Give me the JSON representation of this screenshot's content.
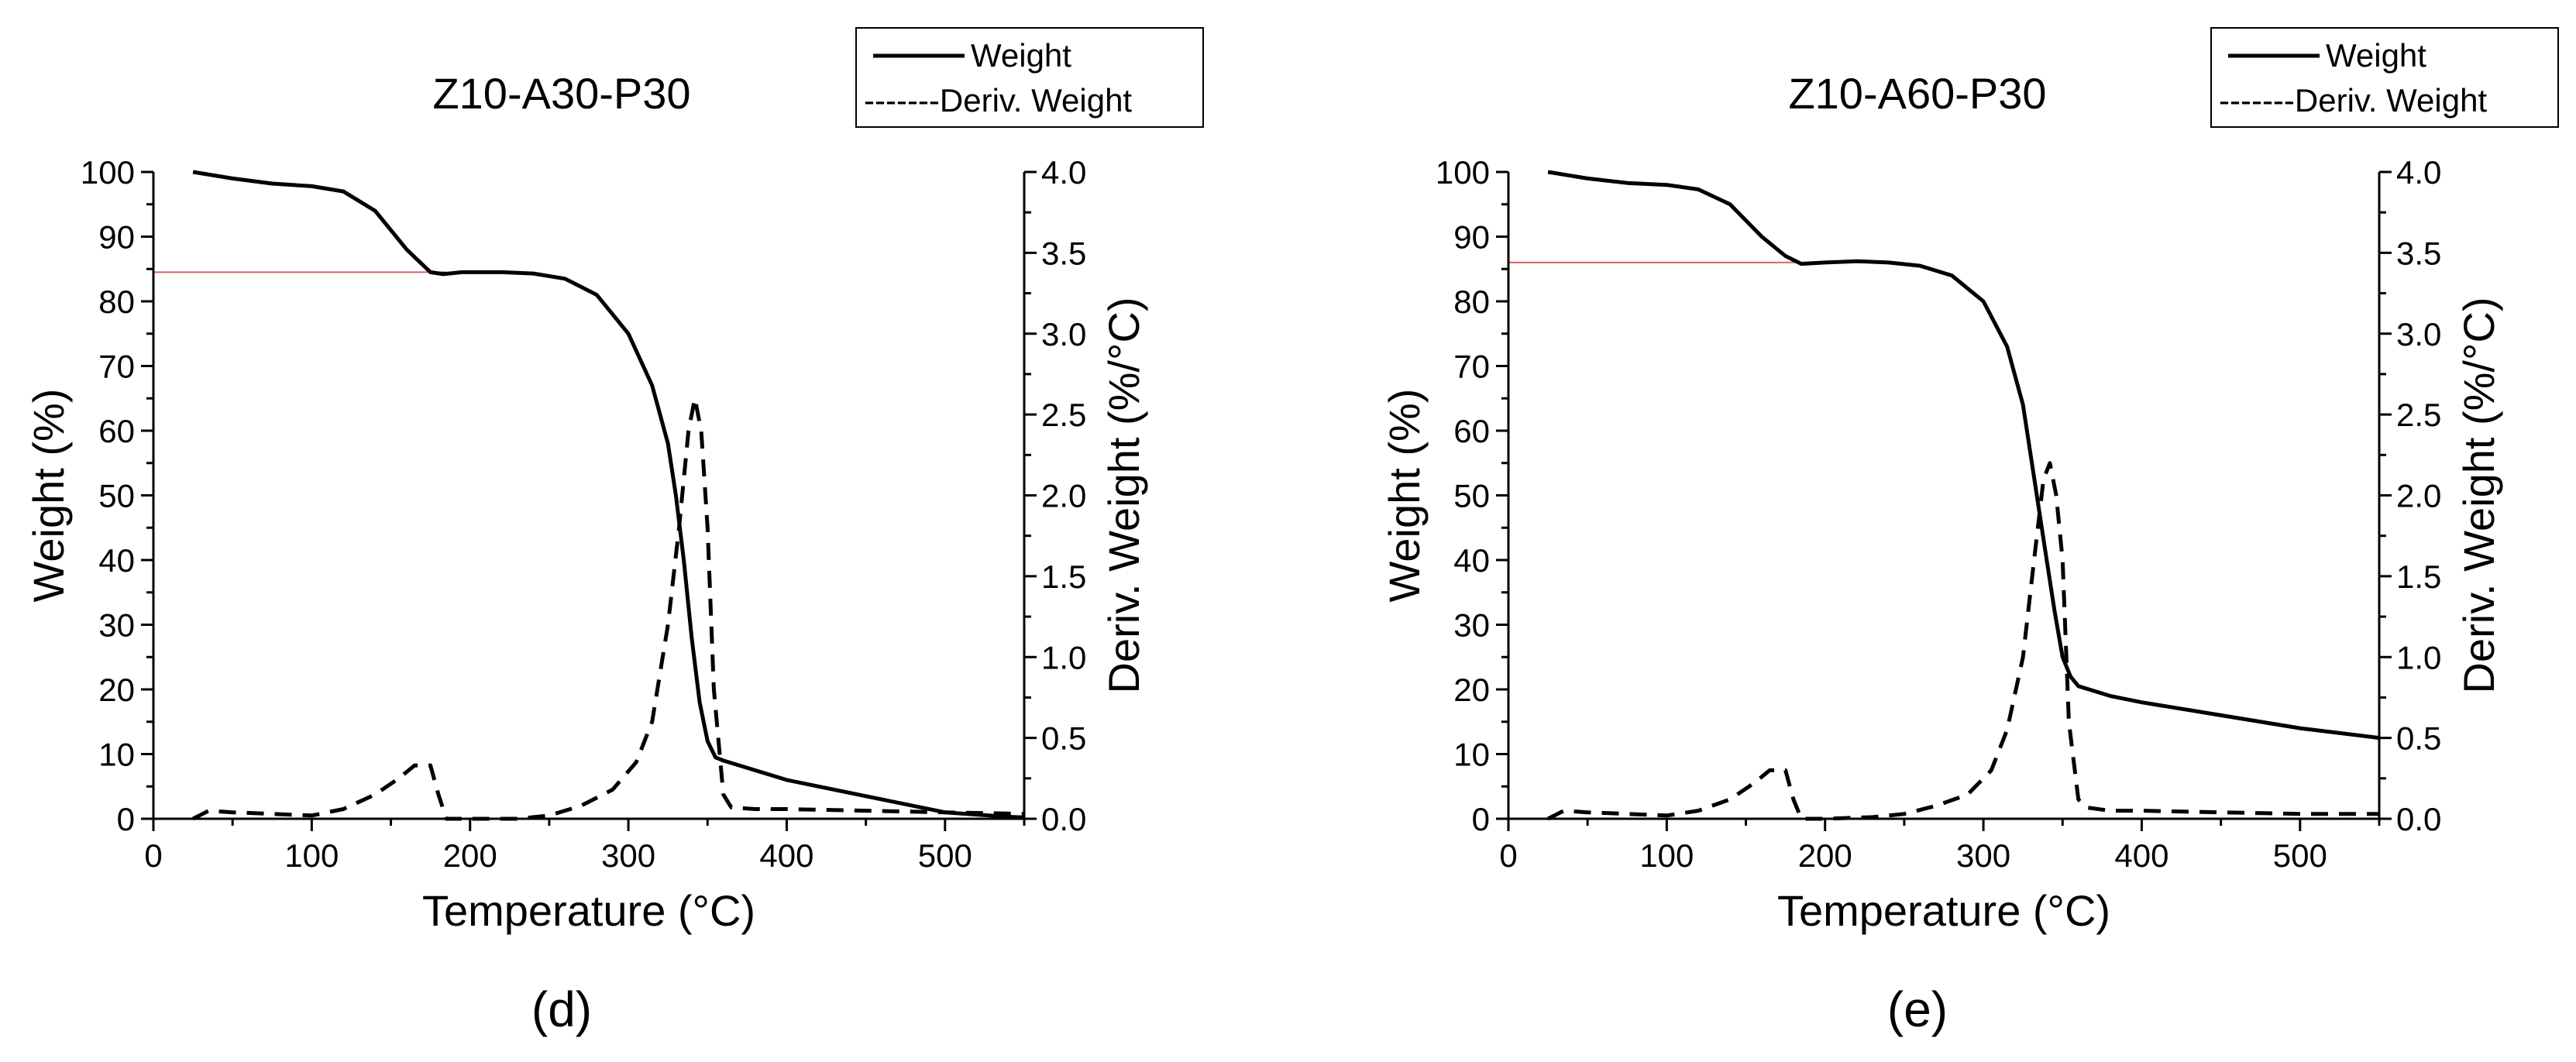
{
  "chart_data": [
    {
      "type": "line",
      "title": "Z10-A30-P30",
      "panel_label": "(d)",
      "xlabel": "Temperature (°C)",
      "ylabel": "Weight (%)",
      "y2label": "Deriv. Weight (%/°C)",
      "xlim": [
        0,
        550
      ],
      "ylim": [
        0,
        100
      ],
      "y2lim": [
        0,
        4.0
      ],
      "xticks": [
        "0",
        "100",
        "200",
        "300",
        "400",
        "500"
      ],
      "yticks": [
        "0",
        "10",
        "20",
        "30",
        "40",
        "50",
        "60",
        "70",
        "80",
        "90",
        "100"
      ],
      "y2ticks": [
        "0.0",
        "0.5",
        "1.0",
        "1.5",
        "2.0",
        "2.5",
        "3.0",
        "3.5",
        "4.0"
      ],
      "legend": [
        "Weight",
        "-------Deriv. Weight"
      ],
      "reference_line": {
        "y": 84.5,
        "x_range": [
          0,
          185
        ],
        "color": "#e06060"
      },
      "series": [
        {
          "name": "Weight",
          "axis": "left",
          "style": "solid",
          "x": [
            25,
            50,
            75,
            100,
            120,
            140,
            160,
            175,
            183,
            195,
            220,
            240,
            260,
            280,
            300,
            315,
            325,
            330,
            335,
            340,
            345,
            350,
            355,
            360,
            380,
            400,
            450,
            500,
            540,
            550
          ],
          "y": [
            100,
            99,
            98.2,
            97.8,
            97,
            94,
            88,
            84.5,
            84.2,
            84.5,
            84.5,
            84.3,
            83.5,
            81,
            75,
            67,
            58,
            50,
            40,
            28,
            18,
            12,
            9.5,
            9,
            7.5,
            6,
            3.5,
            1,
            0.3,
            0.2
          ]
        },
        {
          "name": "Deriv. Weight",
          "axis": "right",
          "style": "dashed",
          "x": [
            25,
            35,
            50,
            75,
            100,
            120,
            140,
            155,
            165,
            175,
            180,
            185,
            200,
            230,
            250,
            270,
            290,
            305,
            315,
            325,
            332,
            338,
            342,
            346,
            350,
            354,
            360,
            365,
            380,
            400,
            450,
            500,
            550
          ],
          "y": [
            0,
            0.05,
            0.04,
            0.03,
            0.02,
            0.06,
            0.15,
            0.25,
            0.33,
            0.33,
            0.15,
            0,
            0,
            0,
            0.02,
            0.08,
            0.18,
            0.35,
            0.6,
            1.2,
            1.8,
            2.4,
            2.6,
            2.4,
            1.8,
            0.8,
            0.15,
            0.07,
            0.06,
            0.06,
            0.05,
            0.04,
            0.03
          ]
        }
      ]
    },
    {
      "type": "line",
      "title": "Z10-A60-P30",
      "panel_label": "(e)",
      "xlabel": "Temperature (°C)",
      "ylabel": "Weight (%)",
      "y2label": "Deriv. Weight (%/°C)",
      "xlim": [
        0,
        550
      ],
      "ylim": [
        0,
        100
      ],
      "y2lim": [
        0,
        4.0
      ],
      "xticks": [
        "0",
        "100",
        "200",
        "300",
        "400",
        "500"
      ],
      "yticks": [
        "0",
        "10",
        "20",
        "30",
        "40",
        "50",
        "60",
        "70",
        "80",
        "90",
        "100"
      ],
      "y2ticks": [
        "0.0",
        "0.5",
        "1.0",
        "1.5",
        "2.0",
        "2.5",
        "3.0",
        "3.5",
        "4.0"
      ],
      "legend": [
        "Weight",
        "-------Deriv. Weight"
      ],
      "reference_line": {
        "y": 86,
        "x_range": [
          0,
          190
        ],
        "color": "#e06060"
      },
      "series": [
        {
          "name": "Weight",
          "axis": "left",
          "style": "solid",
          "x": [
            25,
            50,
            75,
            100,
            120,
            140,
            160,
            175,
            185,
            200,
            220,
            240,
            260,
            280,
            300,
            315,
            325,
            330,
            335,
            340,
            345,
            350,
            355,
            360,
            380,
            400,
            450,
            500,
            550
          ],
          "y": [
            100,
            99,
            98.3,
            98,
            97.3,
            95,
            90,
            87,
            85.8,
            86,
            86.2,
            86,
            85.5,
            84,
            80,
            73,
            64,
            56,
            48,
            40,
            32,
            25,
            22,
            20.5,
            19,
            18,
            16,
            14,
            12.5
          ]
        },
        {
          "name": "Deriv. Weight",
          "axis": "right",
          "style": "dashed",
          "x": [
            25,
            35,
            50,
            75,
            100,
            120,
            140,
            155,
            165,
            175,
            180,
            185,
            200,
            230,
            250,
            270,
            290,
            305,
            315,
            325,
            332,
            338,
            342,
            346,
            350,
            354,
            360,
            365,
            380,
            400,
            450,
            500,
            550
          ],
          "y": [
            0,
            0.05,
            0.04,
            0.03,
            0.02,
            0.05,
            0.12,
            0.22,
            0.3,
            0.3,
            0.12,
            0,
            0,
            0.01,
            0.03,
            0.08,
            0.15,
            0.3,
            0.55,
            1.0,
            1.6,
            2.1,
            2.2,
            2.0,
            1.6,
            0.6,
            0.12,
            0.07,
            0.05,
            0.05,
            0.04,
            0.03,
            0.03
          ]
        }
      ]
    }
  ]
}
